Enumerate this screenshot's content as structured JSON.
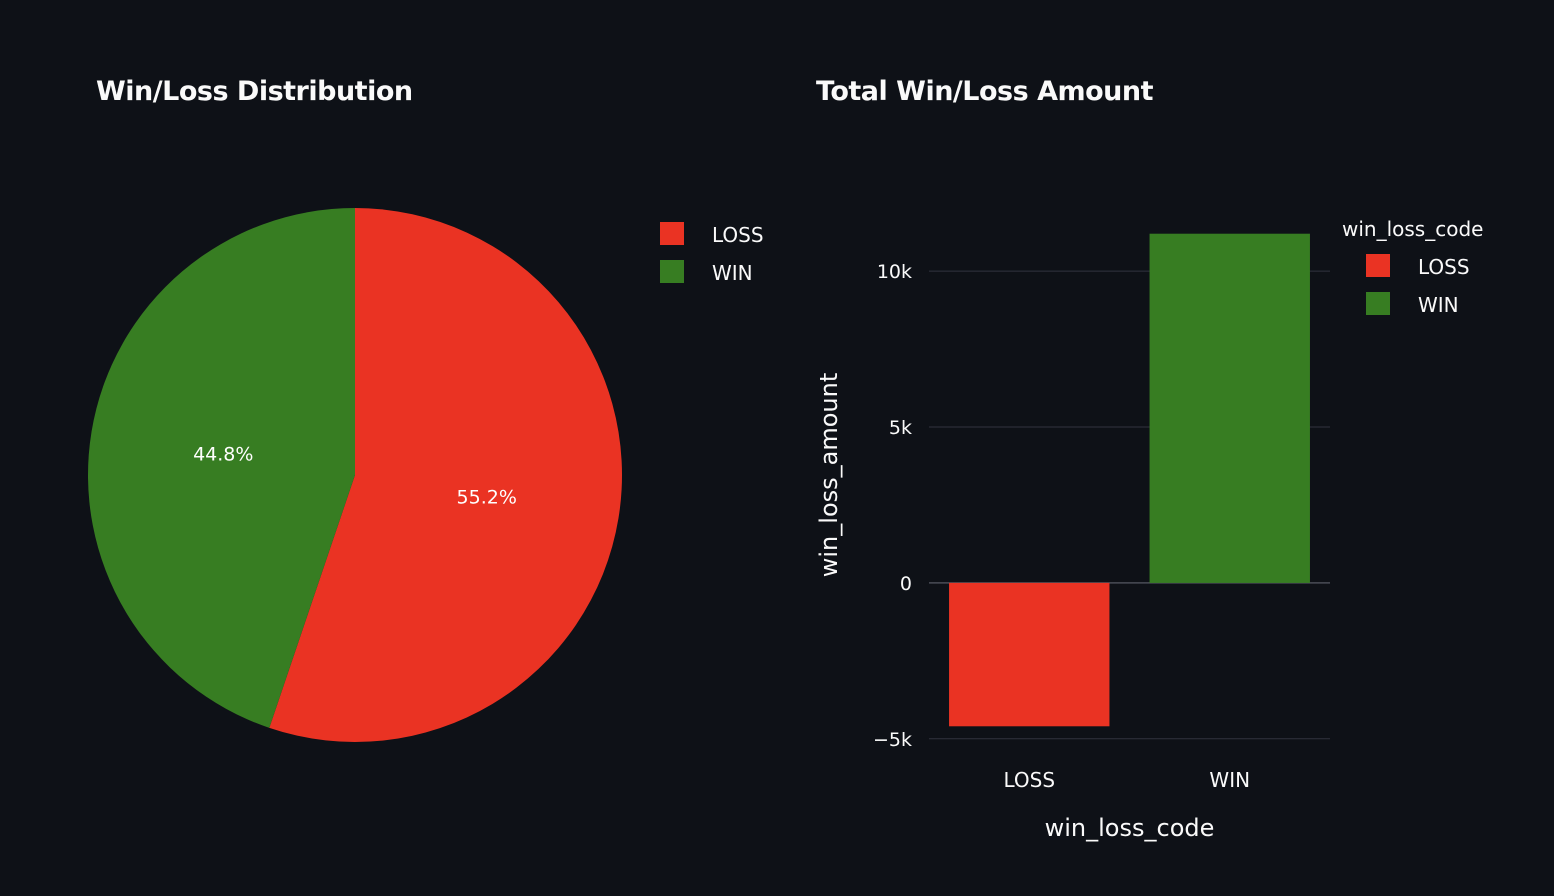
{
  "chart_data": [
    {
      "type": "pie",
      "title": "Win/Loss Distribution",
      "labels": [
        "LOSS",
        "WIN"
      ],
      "values": [
        55.2,
        44.8
      ],
      "data_labels": [
        "55.2%",
        "44.8%"
      ],
      "colors": [
        "#ea3323",
        "#377d22"
      ],
      "legend": {
        "title": "",
        "entries": [
          "LOSS",
          "WIN"
        ],
        "placement": "top-right"
      }
    },
    {
      "type": "bar",
      "title": "Total Win/Loss Amount",
      "xlabel": "win_loss_code",
      "ylabel": "win_loss_amount",
      "categories": [
        "LOSS",
        "WIN"
      ],
      "values": [
        -4600,
        11200
      ],
      "colors": [
        "#ea3323",
        "#377d22"
      ],
      "ylim": [
        -5200,
        11800
      ],
      "yticks": [
        -5000,
        0,
        5000,
        10000
      ],
      "ytick_labels": [
        "−5k",
        "0",
        "5k",
        "10k"
      ],
      "grid": true,
      "legend": {
        "title": "win_loss_code",
        "entries": [
          "LOSS",
          "WIN"
        ],
        "placement": "top-right"
      }
    }
  ],
  "colors": {
    "background": "#0e1117",
    "text": "#fafafa",
    "grid": "#31333f"
  }
}
